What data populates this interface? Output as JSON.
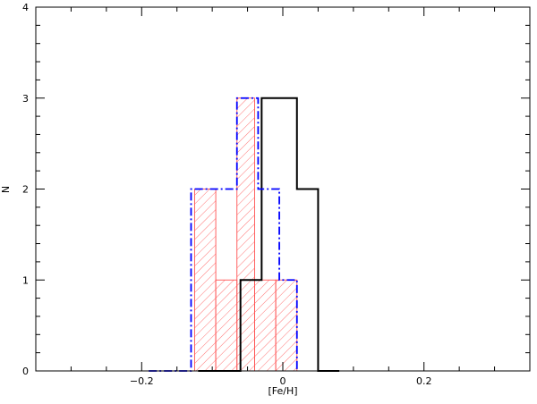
{
  "chart_data": {
    "type": "histogram",
    "title": "",
    "xlabel": "[Fe/H]",
    "ylabel": "N",
    "xlim": [
      -0.35,
      0.35
    ],
    "ylim": [
      0,
      4
    ],
    "x_ticks": [
      -0.2,
      0,
      0.2
    ],
    "x_tick_labels": [
      "−0.2",
      "0",
      "0.2"
    ],
    "y_ticks": [
      0,
      1,
      2,
      3,
      4
    ],
    "y_tick_labels": [
      "0",
      "1",
      "2",
      "3",
      "4"
    ],
    "bin_width": 0.03,
    "series": [
      {
        "style": "solid",
        "color": "#000000",
        "bins": [
          {
            "x0": -0.06,
            "x1": -0.03,
            "count": 1
          },
          {
            "x0": -0.03,
            "x1": 0.02,
            "count": 3
          },
          {
            "x0": 0.02,
            "x1": 0.05,
            "count": 2
          }
        ],
        "baseline_range": [
          -0.12,
          0.08
        ]
      },
      {
        "style": "dash-dot",
        "color": "#0000ff",
        "bins": [
          {
            "x0": -0.13,
            "x1": -0.065,
            "count": 2
          },
          {
            "x0": -0.065,
            "x1": -0.035,
            "count": 3
          },
          {
            "x0": -0.035,
            "x1": -0.005,
            "count": 2
          },
          {
            "x0": -0.005,
            "x1": 0.02,
            "count": 1
          }
        ],
        "baseline_range": [
          -0.19,
          0.02
        ]
      },
      {
        "style": "hatched",
        "color": "#ff5050",
        "bins": [
          {
            "x0": -0.125,
            "x1": -0.095,
            "count": 2
          },
          {
            "x0": -0.095,
            "x1": -0.065,
            "count": 1
          },
          {
            "x0": -0.065,
            "x1": -0.04,
            "count": 3
          },
          {
            "x0": -0.04,
            "x1": -0.01,
            "count": 1
          },
          {
            "x0": -0.01,
            "x1": 0.02,
            "count": 1
          }
        ]
      }
    ]
  }
}
